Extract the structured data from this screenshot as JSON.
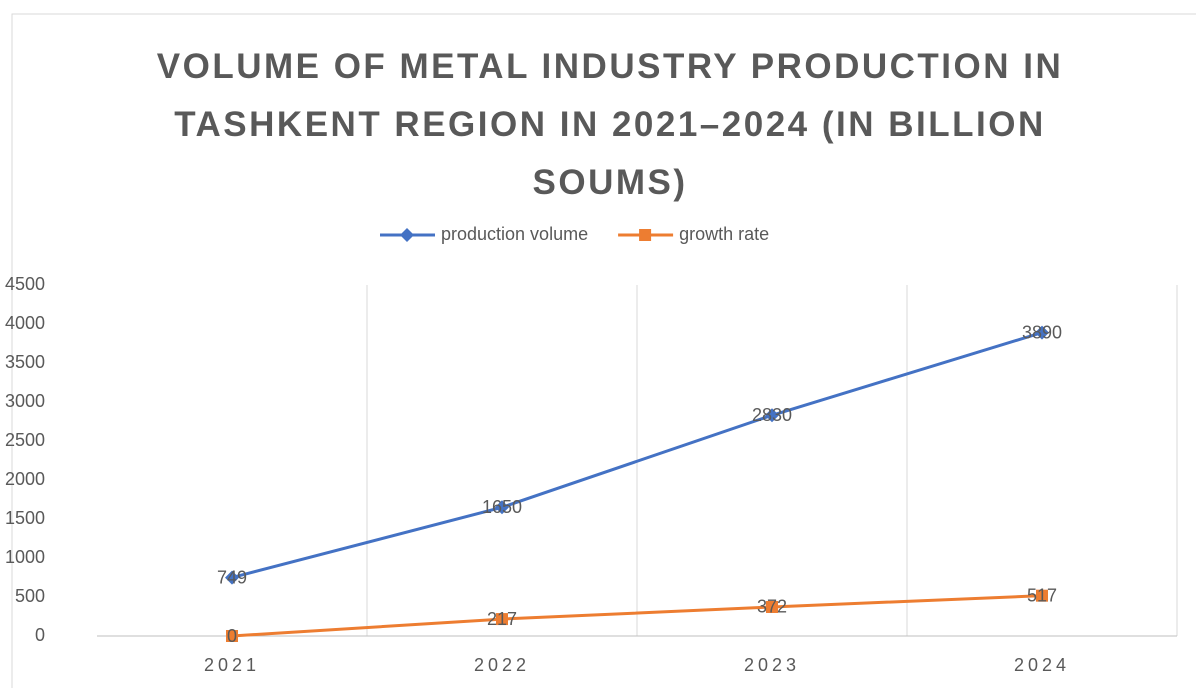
{
  "chart_data": {
    "type": "line",
    "title": "VOLUME OF METAL INDUSTRY PRODUCTION IN TASHKENT REGION IN 2021–2024 (IN BILLION SOUMS)",
    "categories": [
      "2021",
      "2022",
      "2023",
      "2024"
    ],
    "series": [
      {
        "name": "production volume",
        "color": "#4472c4",
        "marker": "diamond",
        "values": [
          749,
          1650,
          2830,
          3890
        ]
      },
      {
        "name": "growth rate",
        "color": "#ed7d31",
        "marker": "square",
        "values": [
          0,
          217,
          372,
          517
        ]
      }
    ],
    "ylim": [
      0,
      4500
    ],
    "yticks": [
      0,
      500,
      1000,
      1500,
      2000,
      2500,
      3000,
      3500,
      4000,
      4500
    ],
    "grid": true,
    "legend": "top",
    "data_labels": true
  }
}
